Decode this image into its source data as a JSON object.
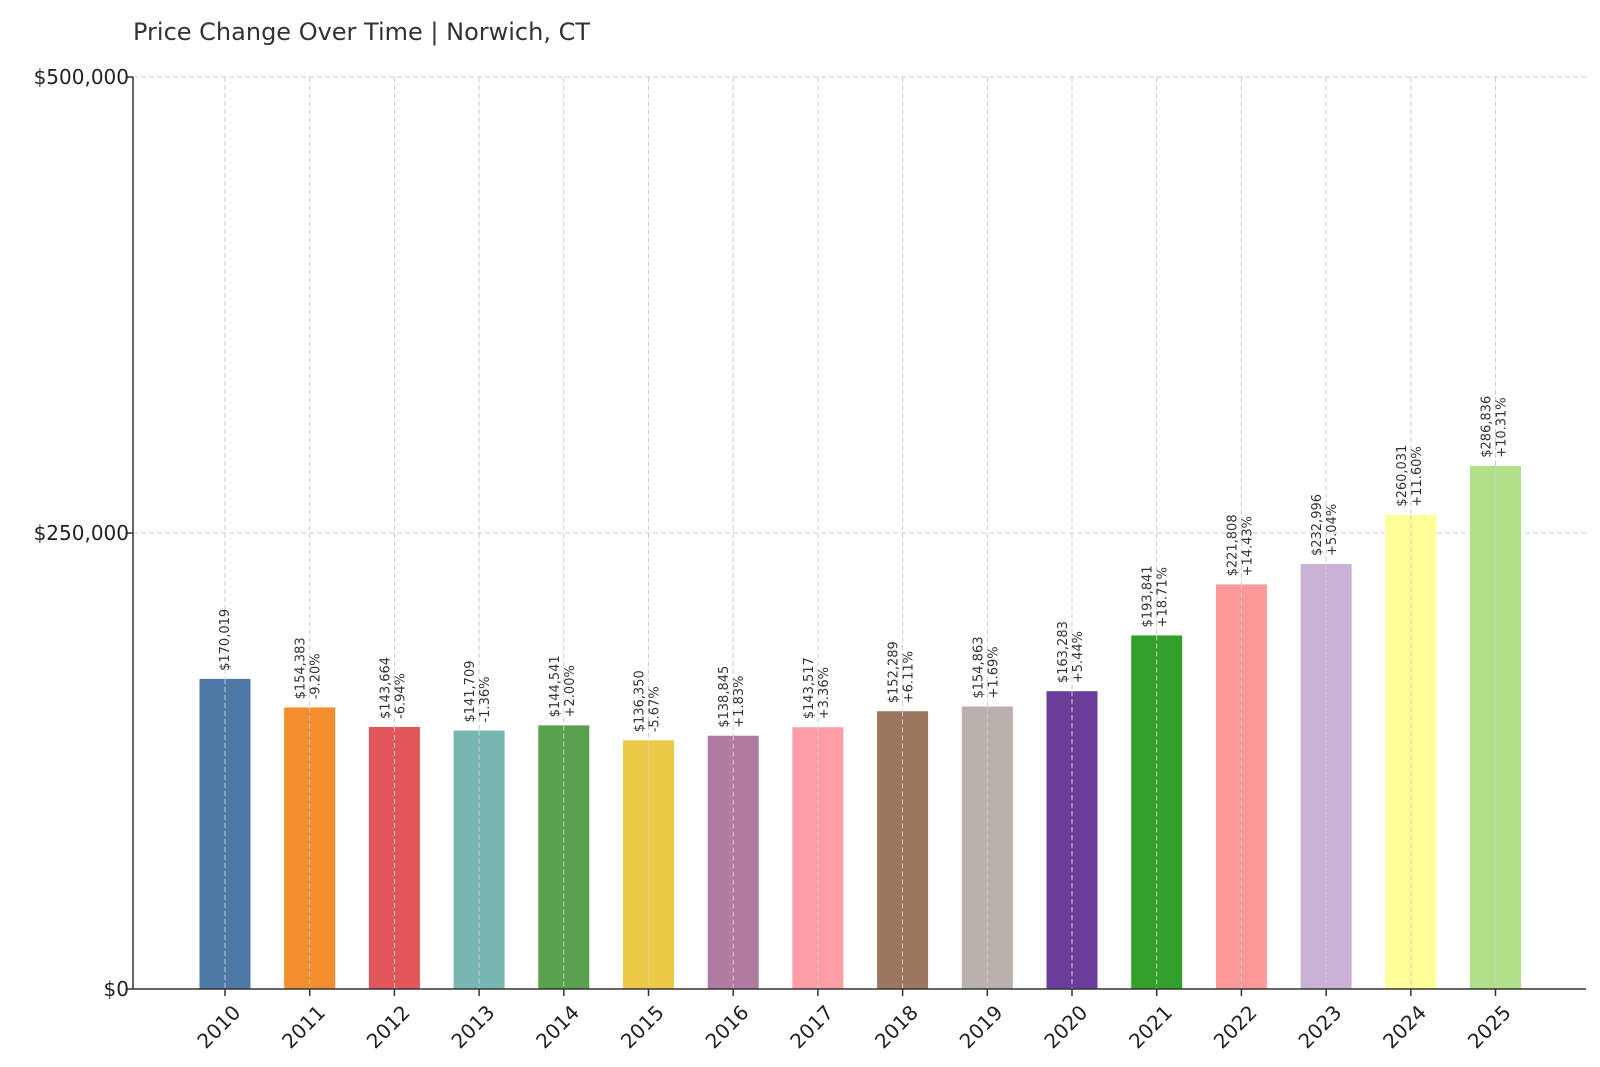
{
  "chart_data": {
    "type": "bar",
    "title": "Price Change Over Time | Norwich, CT",
    "xlabel": "",
    "ylabel": "",
    "ylim": [
      0,
      500000
    ],
    "yticks": [
      0,
      250000,
      500000
    ],
    "ytick_labels": [
      "$0",
      "$250,000",
      "$500,000"
    ],
    "grid": true,
    "categories": [
      "2010",
      "2011",
      "2012",
      "2013",
      "2014",
      "2015",
      "2016",
      "2017",
      "2018",
      "2019",
      "2020",
      "2021",
      "2022",
      "2023",
      "2024",
      "2025"
    ],
    "values": [
      170019,
      154383,
      143664,
      141709,
      144541,
      136350,
      138845,
      143517,
      152289,
      154863,
      163283,
      193841,
      221808,
      232996,
      260031,
      286836
    ],
    "value_labels": [
      "$170,019",
      "$154,383",
      "$143,664",
      "$141,709",
      "$144,541",
      "$136,350",
      "$138,845",
      "$143,517",
      "$152,289",
      "$154,863",
      "$163,283",
      "$193,841",
      "$221,808",
      "$232,996",
      "$260,031",
      "$286,836"
    ],
    "change_labels": [
      "",
      "-9.20%",
      "-6.94%",
      "-1.36%",
      "+2.00%",
      "-5.67%",
      "+1.83%",
      "+3.36%",
      "+6.11%",
      "+1.69%",
      "+5.44%",
      "+18.71%",
      "+14.43%",
      "+5.04%",
      "+11.60%",
      "+10.31%"
    ],
    "colors": [
      "#4e79a7",
      "#f28e2b",
      "#e15759",
      "#76b7b2",
      "#59a14f",
      "#edc948",
      "#b07aa1",
      "#ff9da7",
      "#9c755f",
      "#bab0ac",
      "#6a3d9a",
      "#33a02c",
      "#fb9a99",
      "#c9b2d6",
      "#ffff99",
      "#b2df8a"
    ]
  }
}
